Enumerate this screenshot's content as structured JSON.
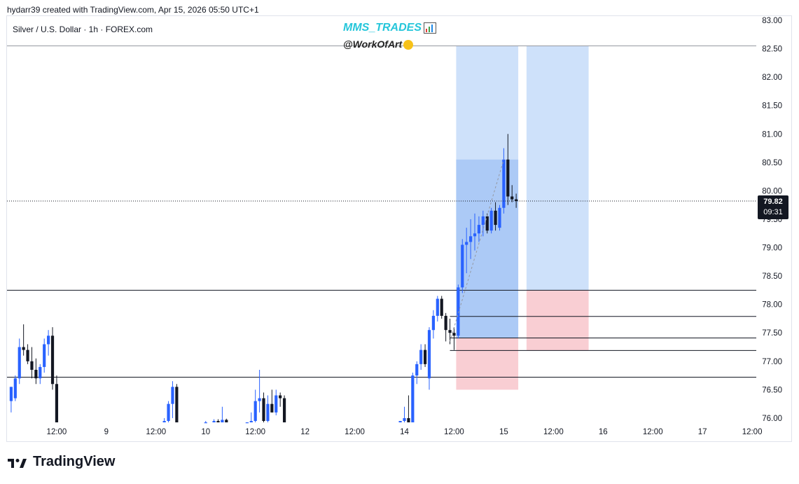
{
  "header": {
    "created_by": "hydarr39 created with TradingView.com, Apr 15, 2026 05:50 UTC+1"
  },
  "symbol": {
    "title": "Silver / U.S. Dollar · 1h · FOREX.com"
  },
  "watermark": {
    "brand": "MMS_TRADES",
    "handle": "@WorkOfArt"
  },
  "footer": {
    "logo_text": "TradingView"
  },
  "price_label": {
    "price": "79.82",
    "countdown": "09:31"
  },
  "colors": {
    "up": "#2962ff",
    "down": "#131722",
    "profit_zone": "#b3d1f7",
    "loss_zone": "#f8c6cb",
    "brand": "#26c6da"
  },
  "chart_data": {
    "type": "candlestick",
    "ylim": [
      75.85,
      83.0
    ],
    "y_ticks": [
      "83.00",
      "82.50",
      "82.00",
      "81.50",
      "81.00",
      "80.50",
      "80.00",
      "79.50",
      "79.00",
      "78.50",
      "78.00",
      "77.50",
      "77.00",
      "76.50",
      "76.00"
    ],
    "x_tick_labels": [
      "12:00",
      "9",
      "12:00",
      "10",
      "12:00",
      "12",
      "12:00",
      "14",
      "12:00",
      "15",
      "12:00",
      "16",
      "12:00",
      "17",
      "12:00"
    ],
    "x_tick_positions_hours": [
      12,
      24,
      36,
      48,
      60,
      72,
      84,
      96,
      108,
      120,
      132,
      144,
      156,
      168,
      180
    ],
    "x_range_hours": [
      0,
      181
    ],
    "horizontal_levels": [
      82.55,
      78.25,
      77.79,
      77.41,
      77.19,
      76.72
    ],
    "position_boxes": [
      {
        "t_start": 108.5,
        "t_end": 123.5,
        "entry": 77.41,
        "target": 82.55,
        "stop": 76.5,
        "filled_to": 80.55
      },
      {
        "t_start": 125.5,
        "t_end": 140.5,
        "entry": 78.25,
        "target": 82.55,
        "stop": 77.19,
        "filled_to": 78.25
      }
    ],
    "candles": [
      {
        "t": 1,
        "o": 76.3,
        "h": 76.55,
        "l": 76.1,
        "c": 76.55
      },
      {
        "t": 2,
        "o": 76.35,
        "h": 76.75,
        "l": 76.3,
        "c": 76.7
      },
      {
        "t": 3,
        "o": 76.7,
        "h": 77.4,
        "l": 76.6,
        "c": 77.25
      },
      {
        "t": 4,
        "o": 77.25,
        "h": 77.65,
        "l": 77.1,
        "c": 77.2
      },
      {
        "t": 5,
        "o": 77.2,
        "h": 77.3,
        "l": 76.95,
        "c": 77.0
      },
      {
        "t": 6,
        "o": 77.0,
        "h": 77.25,
        "l": 76.7,
        "c": 76.85
      },
      {
        "t": 7,
        "o": 76.85,
        "h": 77.05,
        "l": 76.6,
        "c": 76.7
      },
      {
        "t": 8,
        "o": 76.7,
        "h": 76.95,
        "l": 76.6,
        "c": 76.9
      },
      {
        "t": 9,
        "o": 76.9,
        "h": 77.4,
        "l": 76.8,
        "c": 77.3
      },
      {
        "t": 10,
        "o": 77.3,
        "h": 77.55,
        "l": 77.1,
        "c": 77.45
      },
      {
        "t": 11,
        "o": 77.45,
        "h": 77.6,
        "l": 76.5,
        "c": 76.6
      },
      {
        "t": 12,
        "o": 76.6,
        "h": 76.75,
        "l": 75.85,
        "c": 75.85
      },
      {
        "t": 38,
        "o": 75.85,
        "h": 76.0,
        "l": 75.85,
        "c": 75.95
      },
      {
        "t": 39,
        "o": 75.95,
        "h": 76.3,
        "l": 75.85,
        "c": 76.25
      },
      {
        "t": 40,
        "o": 76.25,
        "h": 76.65,
        "l": 76.0,
        "c": 76.55
      },
      {
        "t": 41,
        "o": 76.55,
        "h": 76.6,
        "l": 75.85,
        "c": 75.9
      },
      {
        "t": 48,
        "o": 75.85,
        "h": 75.95,
        "l": 75.85,
        "c": 75.9
      },
      {
        "t": 50,
        "o": 75.9,
        "h": 75.98,
        "l": 75.85,
        "c": 75.95
      },
      {
        "t": 51,
        "o": 75.95,
        "h": 75.98,
        "l": 75.85,
        "c": 75.88
      },
      {
        "t": 52,
        "o": 75.88,
        "h": 76.2,
        "l": 75.85,
        "c": 75.97
      },
      {
        "t": 53,
        "o": 75.97,
        "h": 75.99,
        "l": 75.85,
        "c": 75.86
      },
      {
        "t": 58,
        "o": 75.86,
        "h": 75.92,
        "l": 75.85,
        "c": 75.9
      },
      {
        "t": 59,
        "o": 75.9,
        "h": 76.1,
        "l": 75.85,
        "c": 75.95
      },
      {
        "t": 60,
        "o": 75.95,
        "h": 76.5,
        "l": 75.85,
        "c": 76.3
      },
      {
        "t": 61,
        "o": 76.3,
        "h": 76.85,
        "l": 76.1,
        "c": 76.35
      },
      {
        "t": 62,
        "o": 76.35,
        "h": 76.45,
        "l": 75.85,
        "c": 75.95
      },
      {
        "t": 63,
        "o": 75.95,
        "h": 76.4,
        "l": 75.85,
        "c": 76.25
      },
      {
        "t": 64,
        "o": 76.25,
        "h": 76.5,
        "l": 76.1,
        "c": 76.1
      },
      {
        "t": 65,
        "o": 76.1,
        "h": 76.5,
        "l": 76.05,
        "c": 76.4
      },
      {
        "t": 66,
        "o": 76.4,
        "h": 76.45,
        "l": 76.2,
        "c": 76.35
      },
      {
        "t": 67,
        "o": 76.35,
        "h": 76.4,
        "l": 75.85,
        "c": 75.85
      },
      {
        "t": 95,
        "o": 75.85,
        "h": 75.95,
        "l": 75.85,
        "c": 75.95
      },
      {
        "t": 96,
        "o": 75.95,
        "h": 76.2,
        "l": 75.85,
        "c": 76.0
      },
      {
        "t": 97,
        "o": 76.0,
        "h": 76.4,
        "l": 75.85,
        "c": 75.9
      },
      {
        "t": 98,
        "o": 75.9,
        "h": 76.8,
        "l": 75.85,
        "c": 76.75
      },
      {
        "t": 99,
        "o": 76.75,
        "h": 77.0,
        "l": 76.6,
        "c": 76.95
      },
      {
        "t": 100,
        "o": 76.95,
        "h": 77.3,
        "l": 76.85,
        "c": 77.2
      },
      {
        "t": 101,
        "o": 77.2,
        "h": 77.3,
        "l": 76.9,
        "c": 76.95
      },
      {
        "t": 102,
        "o": 76.7,
        "h": 77.6,
        "l": 76.5,
        "c": 77.55
      },
      {
        "t": 103,
        "o": 77.55,
        "h": 77.9,
        "l": 77.4,
        "c": 77.8
      },
      {
        "t": 104,
        "o": 77.8,
        "h": 78.15,
        "l": 77.7,
        "c": 78.1
      },
      {
        "t": 105,
        "o": 78.1,
        "h": 78.15,
        "l": 77.75,
        "c": 77.8
      },
      {
        "t": 106,
        "o": 77.8,
        "h": 77.85,
        "l": 77.35,
        "c": 77.55
      },
      {
        "t": 107,
        "o": 77.55,
        "h": 77.75,
        "l": 77.3,
        "c": 77.5
      },
      {
        "t": 108,
        "o": 77.5,
        "h": 77.6,
        "l": 77.2,
        "c": 77.45
      },
      {
        "t": 109,
        "o": 77.45,
        "h": 78.35,
        "l": 77.4,
        "c": 78.3
      },
      {
        "t": 110,
        "o": 78.3,
        "h": 79.15,
        "l": 78.2,
        "c": 79.05
      },
      {
        "t": 111,
        "o": 79.05,
        "h": 79.35,
        "l": 78.55,
        "c": 79.1
      },
      {
        "t": 112,
        "o": 79.1,
        "h": 79.5,
        "l": 78.8,
        "c": 79.2
      },
      {
        "t": 113,
        "o": 79.2,
        "h": 79.6,
        "l": 78.95,
        "c": 79.25
      },
      {
        "t": 114,
        "o": 79.25,
        "h": 79.55,
        "l": 79.1,
        "c": 79.4
      },
      {
        "t": 115,
        "o": 79.4,
        "h": 79.65,
        "l": 79.2,
        "c": 79.55
      },
      {
        "t": 116,
        "o": 79.55,
        "h": 79.6,
        "l": 79.25,
        "c": 79.3
      },
      {
        "t": 117,
        "o": 79.3,
        "h": 79.7,
        "l": 79.25,
        "c": 79.65
      },
      {
        "t": 118,
        "o": 79.65,
        "h": 79.8,
        "l": 79.3,
        "c": 79.4
      },
      {
        "t": 119,
        "o": 79.35,
        "h": 79.75,
        "l": 79.3,
        "c": 79.7
      },
      {
        "t": 120,
        "o": 79.7,
        "h": 80.75,
        "l": 79.6,
        "c": 80.55
      },
      {
        "t": 121,
        "o": 80.55,
        "h": 81.0,
        "l": 79.75,
        "c": 79.9
      },
      {
        "t": 122,
        "o": 79.9,
        "h": 80.1,
        "l": 79.8,
        "c": 79.85
      },
      {
        "t": 123,
        "o": 79.85,
        "h": 79.95,
        "l": 79.7,
        "c": 79.82
      }
    ],
    "trend_line": [
      {
        "t": 107,
        "p": 77.35
      },
      {
        "t": 120,
        "p": 80.55
      }
    ],
    "last_price": 79.82
  }
}
